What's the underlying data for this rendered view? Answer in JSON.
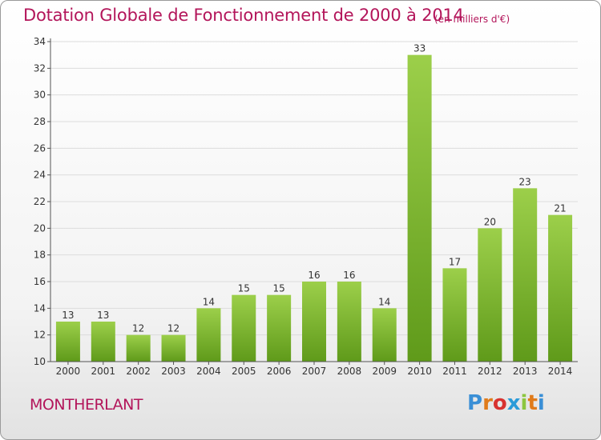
{
  "title": "Dotation Globale de Fonctionnement de 2000 à 2014",
  "unit_note": "(en milliers d'€)",
  "commune": "MONTHERLANT",
  "logo": {
    "text": "Proxiti",
    "letters": [
      "P",
      "r",
      "o",
      "x",
      "i",
      "t",
      "i"
    ],
    "colors": [
      "#3a8fd6",
      "#e07b1a",
      "#d8322f",
      "#2b9bd8",
      "#8cc63f",
      "#e07b1a",
      "#3a8fd6"
    ]
  },
  "colors": {
    "accent": "#b3155a",
    "bar_light": "#9ccf4a",
    "bar_dark": "#5f9a1a"
  },
  "chart_data": {
    "type": "bar",
    "categories": [
      "2000",
      "2001",
      "2002",
      "2003",
      "2004",
      "2005",
      "2006",
      "2007",
      "2008",
      "2009",
      "2010",
      "2011",
      "2012",
      "2013",
      "2014"
    ],
    "values": [
      13,
      13,
      12,
      12,
      14,
      15,
      15,
      16,
      16,
      14,
      33,
      17,
      20,
      23,
      21
    ],
    "ylim": [
      10,
      34
    ],
    "yticks": [
      10,
      12,
      14,
      16,
      18,
      20,
      22,
      24,
      26,
      28,
      30,
      32,
      34
    ],
    "grid": true,
    "title": "Dotation Globale de Fonctionnement de 2000 à 2014",
    "xlabel": "",
    "ylabel": ""
  }
}
